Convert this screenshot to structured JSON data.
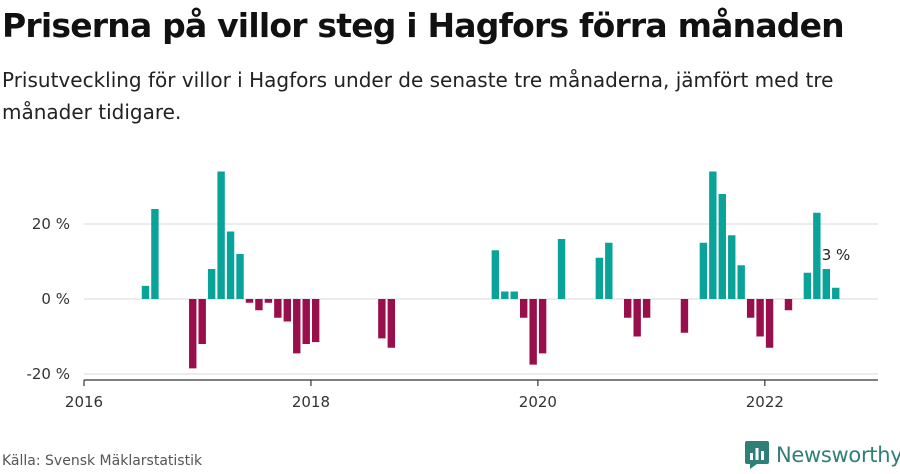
{
  "header": {
    "title": "Priserna på villor steg i Hagfors förra månaden",
    "subtitle": "Prisutveckling för villor i Hagfors under de senaste tre månaderna, jämfört med tre månader tidigare."
  },
  "footer": {
    "source": "Källa: Svensk Mäklarstatistik",
    "brand": "Newsworthy"
  },
  "colors": {
    "positive": "#0aa39a",
    "negative": "#990f4b",
    "grid": "#d9d9d9",
    "axis": "#333333",
    "brand": "#2f7f78"
  },
  "icons": {
    "brand_logo": "newsworthy-logo-icon"
  },
  "chart_data": {
    "type": "bar",
    "title": "Priserna på villor steg i Hagfors förra månaden",
    "x_unit": "month",
    "x_range": [
      "2016-01",
      "2022-12"
    ],
    "ylim": [
      -20,
      35
    ],
    "y_ticks": [
      {
        "value": -20,
        "label": "-20 %"
      },
      {
        "value": 0,
        "label": "0 %"
      },
      {
        "value": 20,
        "label": "20 %"
      }
    ],
    "x_ticks": [
      "2016",
      "2018",
      "2020",
      "2022"
    ],
    "grid": true,
    "last_value_label": "3 %",
    "series": [
      {
        "name": "Prisutveckling",
        "points": [
          {
            "x": "2016-07",
            "y": 3.5
          },
          {
            "x": "2016-08",
            "y": 24
          },
          {
            "x": "2016-12",
            "y": -18.5
          },
          {
            "x": "2017-01",
            "y": -12
          },
          {
            "x": "2017-02",
            "y": 8
          },
          {
            "x": "2017-03",
            "y": 34
          },
          {
            "x": "2017-04",
            "y": 18
          },
          {
            "x": "2017-05",
            "y": 12
          },
          {
            "x": "2017-06",
            "y": -1
          },
          {
            "x": "2017-07",
            "y": -3
          },
          {
            "x": "2017-08",
            "y": -1
          },
          {
            "x": "2017-09",
            "y": -5
          },
          {
            "x": "2017-10",
            "y": -6
          },
          {
            "x": "2017-11",
            "y": -14.5
          },
          {
            "x": "2017-12",
            "y": -12
          },
          {
            "x": "2018-01",
            "y": -11.5
          },
          {
            "x": "2018-08",
            "y": -10.5
          },
          {
            "x": "2018-09",
            "y": -13
          },
          {
            "x": "2019-08",
            "y": 13
          },
          {
            "x": "2019-09",
            "y": 2
          },
          {
            "x": "2019-10",
            "y": 2
          },
          {
            "x": "2019-11",
            "y": -5
          },
          {
            "x": "2019-12",
            "y": -17.5
          },
          {
            "x": "2020-01",
            "y": -14.5
          },
          {
            "x": "2020-03",
            "y": 16
          },
          {
            "x": "2020-07",
            "y": 11
          },
          {
            "x": "2020-08",
            "y": 15
          },
          {
            "x": "2020-10",
            "y": -5
          },
          {
            "x": "2020-11",
            "y": -10
          },
          {
            "x": "2020-12",
            "y": -5
          },
          {
            "x": "2021-04",
            "y": -9
          },
          {
            "x": "2021-06",
            "y": 15
          },
          {
            "x": "2021-07",
            "y": 34
          },
          {
            "x": "2021-08",
            "y": 28
          },
          {
            "x": "2021-09",
            "y": 17
          },
          {
            "x": "2021-10",
            "y": 9
          },
          {
            "x": "2021-11",
            "y": -5
          },
          {
            "x": "2021-12",
            "y": -10
          },
          {
            "x": "2022-01",
            "y": -13
          },
          {
            "x": "2022-03",
            "y": -3
          },
          {
            "x": "2022-05",
            "y": 7
          },
          {
            "x": "2022-06",
            "y": 23
          },
          {
            "x": "2022-07",
            "y": 8
          },
          {
            "x": "2022-08",
            "y": 3
          }
        ]
      }
    ]
  }
}
